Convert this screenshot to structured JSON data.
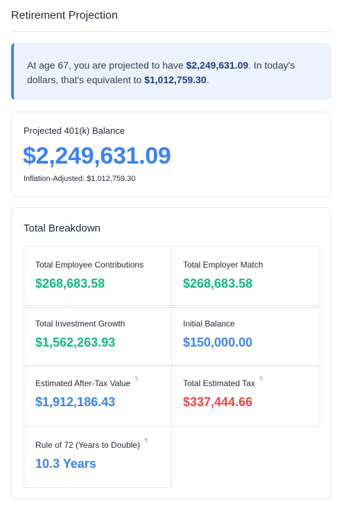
{
  "page": {
    "title": "Retirement Projection"
  },
  "summary": {
    "prefix": "At age 67, you are projected to have ",
    "projected": "$2,249,631.09",
    "middle": ". In today's dollars, that's equivalent to ",
    "adjusted": "$1,012,759.30",
    "suffix": "."
  },
  "balance": {
    "label": "Projected 401(k) Balance",
    "value": "$2,249,631.09",
    "inflation_label": "Inflation-Adjusted: $1,012,759.30"
  },
  "breakdown": {
    "title": "Total Breakdown",
    "help_symbol": "?",
    "items": [
      {
        "label": "Total Employee Contributions",
        "value": "$268,683.58",
        "color": "#10b981"
      },
      {
        "label": "Total Employer Match",
        "value": "$268,683.58",
        "color": "#10b981"
      },
      {
        "label": "Total Investment Growth",
        "value": "$1,562,263.93",
        "color": "#10b981"
      },
      {
        "label": "Initial Balance",
        "value": "$150,000.00",
        "color": "#3b82f6"
      },
      {
        "label": "Estimated After-Tax Value",
        "value": "$1,912,186.43",
        "color": "#3b82f6"
      },
      {
        "label": "Total Estimated Tax",
        "value": "$337,444.66",
        "color": "#ef4444"
      },
      {
        "label": "Rule of 72 (Years to Double)",
        "value": "10.3 Years",
        "color": "#3b82f6"
      }
    ]
  },
  "colors": {
    "accent": "#3b82f6",
    "positive": "#10b981",
    "negative": "#ef4444",
    "alert_bg": "#ecf3fe"
  }
}
